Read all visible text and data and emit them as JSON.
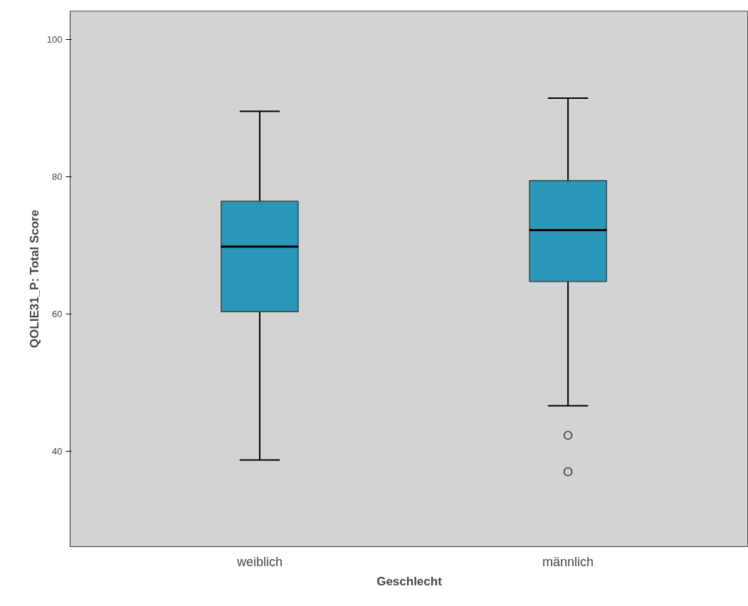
{
  "chart_data": {
    "type": "box",
    "xlabel": "Geschlecht",
    "ylabel": "QOLIE31_P: Total Score",
    "categories": [
      "weiblich",
      "männlich"
    ],
    "series": [
      {
        "color": "#2a97b8",
        "boxes": [
          {
            "low": 38.7,
            "q1": 60.3,
            "median": 69.8,
            "q3": 76.4,
            "high": 89.5
          },
          {
            "low": 46.6,
            "q1": 64.7,
            "median": 72.2,
            "q3": 79.4,
            "high": 91.4,
            "outliers": [
              42.3,
              37.0
            ]
          }
        ]
      }
    ],
    "ylim": [
      26.1,
      104.1
    ],
    "yticks": [
      40,
      60,
      80,
      100
    ]
  }
}
